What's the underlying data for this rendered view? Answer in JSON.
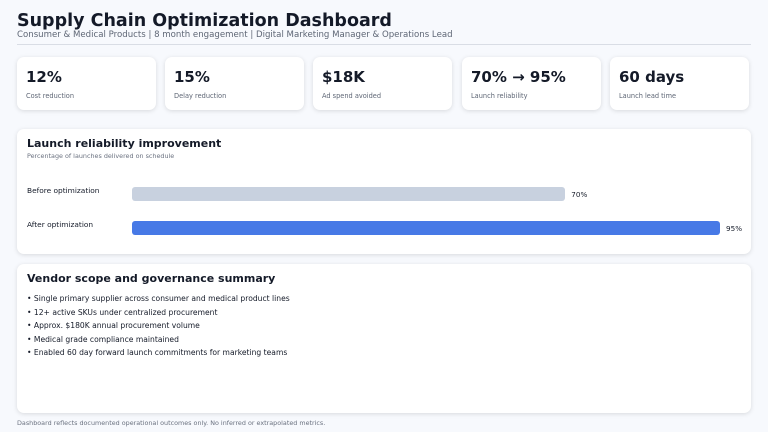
{
  "header": {
    "title": "Supply Chain Optimization Dashboard",
    "subtitle": "Consumer & Medical Products | 8 month engagement | Digital Marketing Manager & Operations Lead"
  },
  "kpis": [
    {
      "value": "12%",
      "label": "Cost reduction"
    },
    {
      "value": "15%",
      "label": "Delay reduction"
    },
    {
      "value": "$18K",
      "label": "Ad spend avoided"
    },
    {
      "value": "70% → 95%",
      "label": "Launch reliability"
    },
    {
      "value": "60 days",
      "label": "Launch lead time"
    }
  ],
  "reliability": {
    "title": "Launch reliability improvement",
    "subtitle": "Percentage of launches delivered on schedule",
    "bars": [
      {
        "label": "Before optimization",
        "value": 70,
        "value_label": "70%",
        "color": "#c8d1df"
      },
      {
        "label": "After optimization",
        "value": 95,
        "value_label": "95%",
        "color": "#4779e6"
      }
    ]
  },
  "vendor": {
    "title": "Vendor scope and governance summary",
    "items": [
      "• Single primary supplier across consumer and medical product lines",
      "• 12+ active SKUs under centralized procurement",
      "• Approx. $180K annual procurement volume",
      "• Medical grade compliance maintained",
      "• Enabled 60 day forward launch commitments for marketing teams"
    ]
  },
  "footer": "Dashboard reflects documented operational outcomes only. No inferred or extrapolated metrics."
}
